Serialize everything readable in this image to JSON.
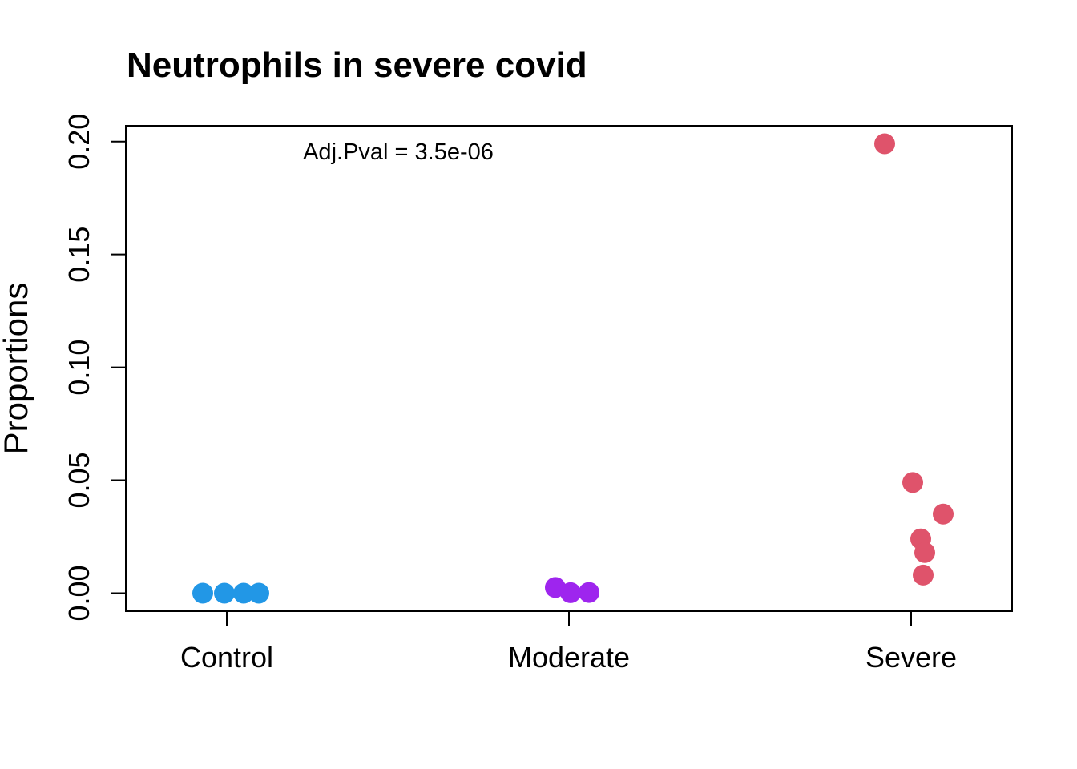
{
  "chart_data": {
    "type": "scatter",
    "title": "Neutrophils in severe covid",
    "xlabel": "",
    "ylabel": "Proportions",
    "ylim": [
      -0.008,
      0.207
    ],
    "y_ticks": [
      "0.00",
      "0.05",
      "0.10",
      "0.15",
      "0.20"
    ],
    "y_tick_values": [
      0.0,
      0.05,
      0.1,
      0.15,
      0.2
    ],
    "categories": [
      "Control",
      "Moderate",
      "Severe"
    ],
    "annotation": "Adj.Pval = 3.5e-06",
    "grid": false,
    "legend": "none",
    "series": [
      {
        "category": "Control",
        "color": "#2297E6",
        "points": [
          {
            "jitter": -0.3,
            "y": 0.0
          },
          {
            "jitter": -0.03,
            "y": 0.0
          },
          {
            "jitter": 0.21,
            "y": 0.0
          },
          {
            "jitter": 0.4,
            "y": 0.0
          }
        ]
      },
      {
        "category": "Moderate",
        "color": "#9E25EE",
        "points": [
          {
            "jitter": -0.17,
            "y": 0.0025
          },
          {
            "jitter": 0.02,
            "y": 0.0002
          },
          {
            "jitter": 0.25,
            "y": 0.0003
          }
        ]
      },
      {
        "category": "Severe",
        "color": "#DF536B",
        "points": [
          {
            "jitter": -0.33,
            "y": 0.199
          },
          {
            "jitter": 0.02,
            "y": 0.049
          },
          {
            "jitter": 0.4,
            "y": 0.035
          },
          {
            "jitter": 0.12,
            "y": 0.024
          },
          {
            "jitter": 0.17,
            "y": 0.018
          },
          {
            "jitter": 0.15,
            "y": 0.008
          }
        ]
      }
    ]
  }
}
